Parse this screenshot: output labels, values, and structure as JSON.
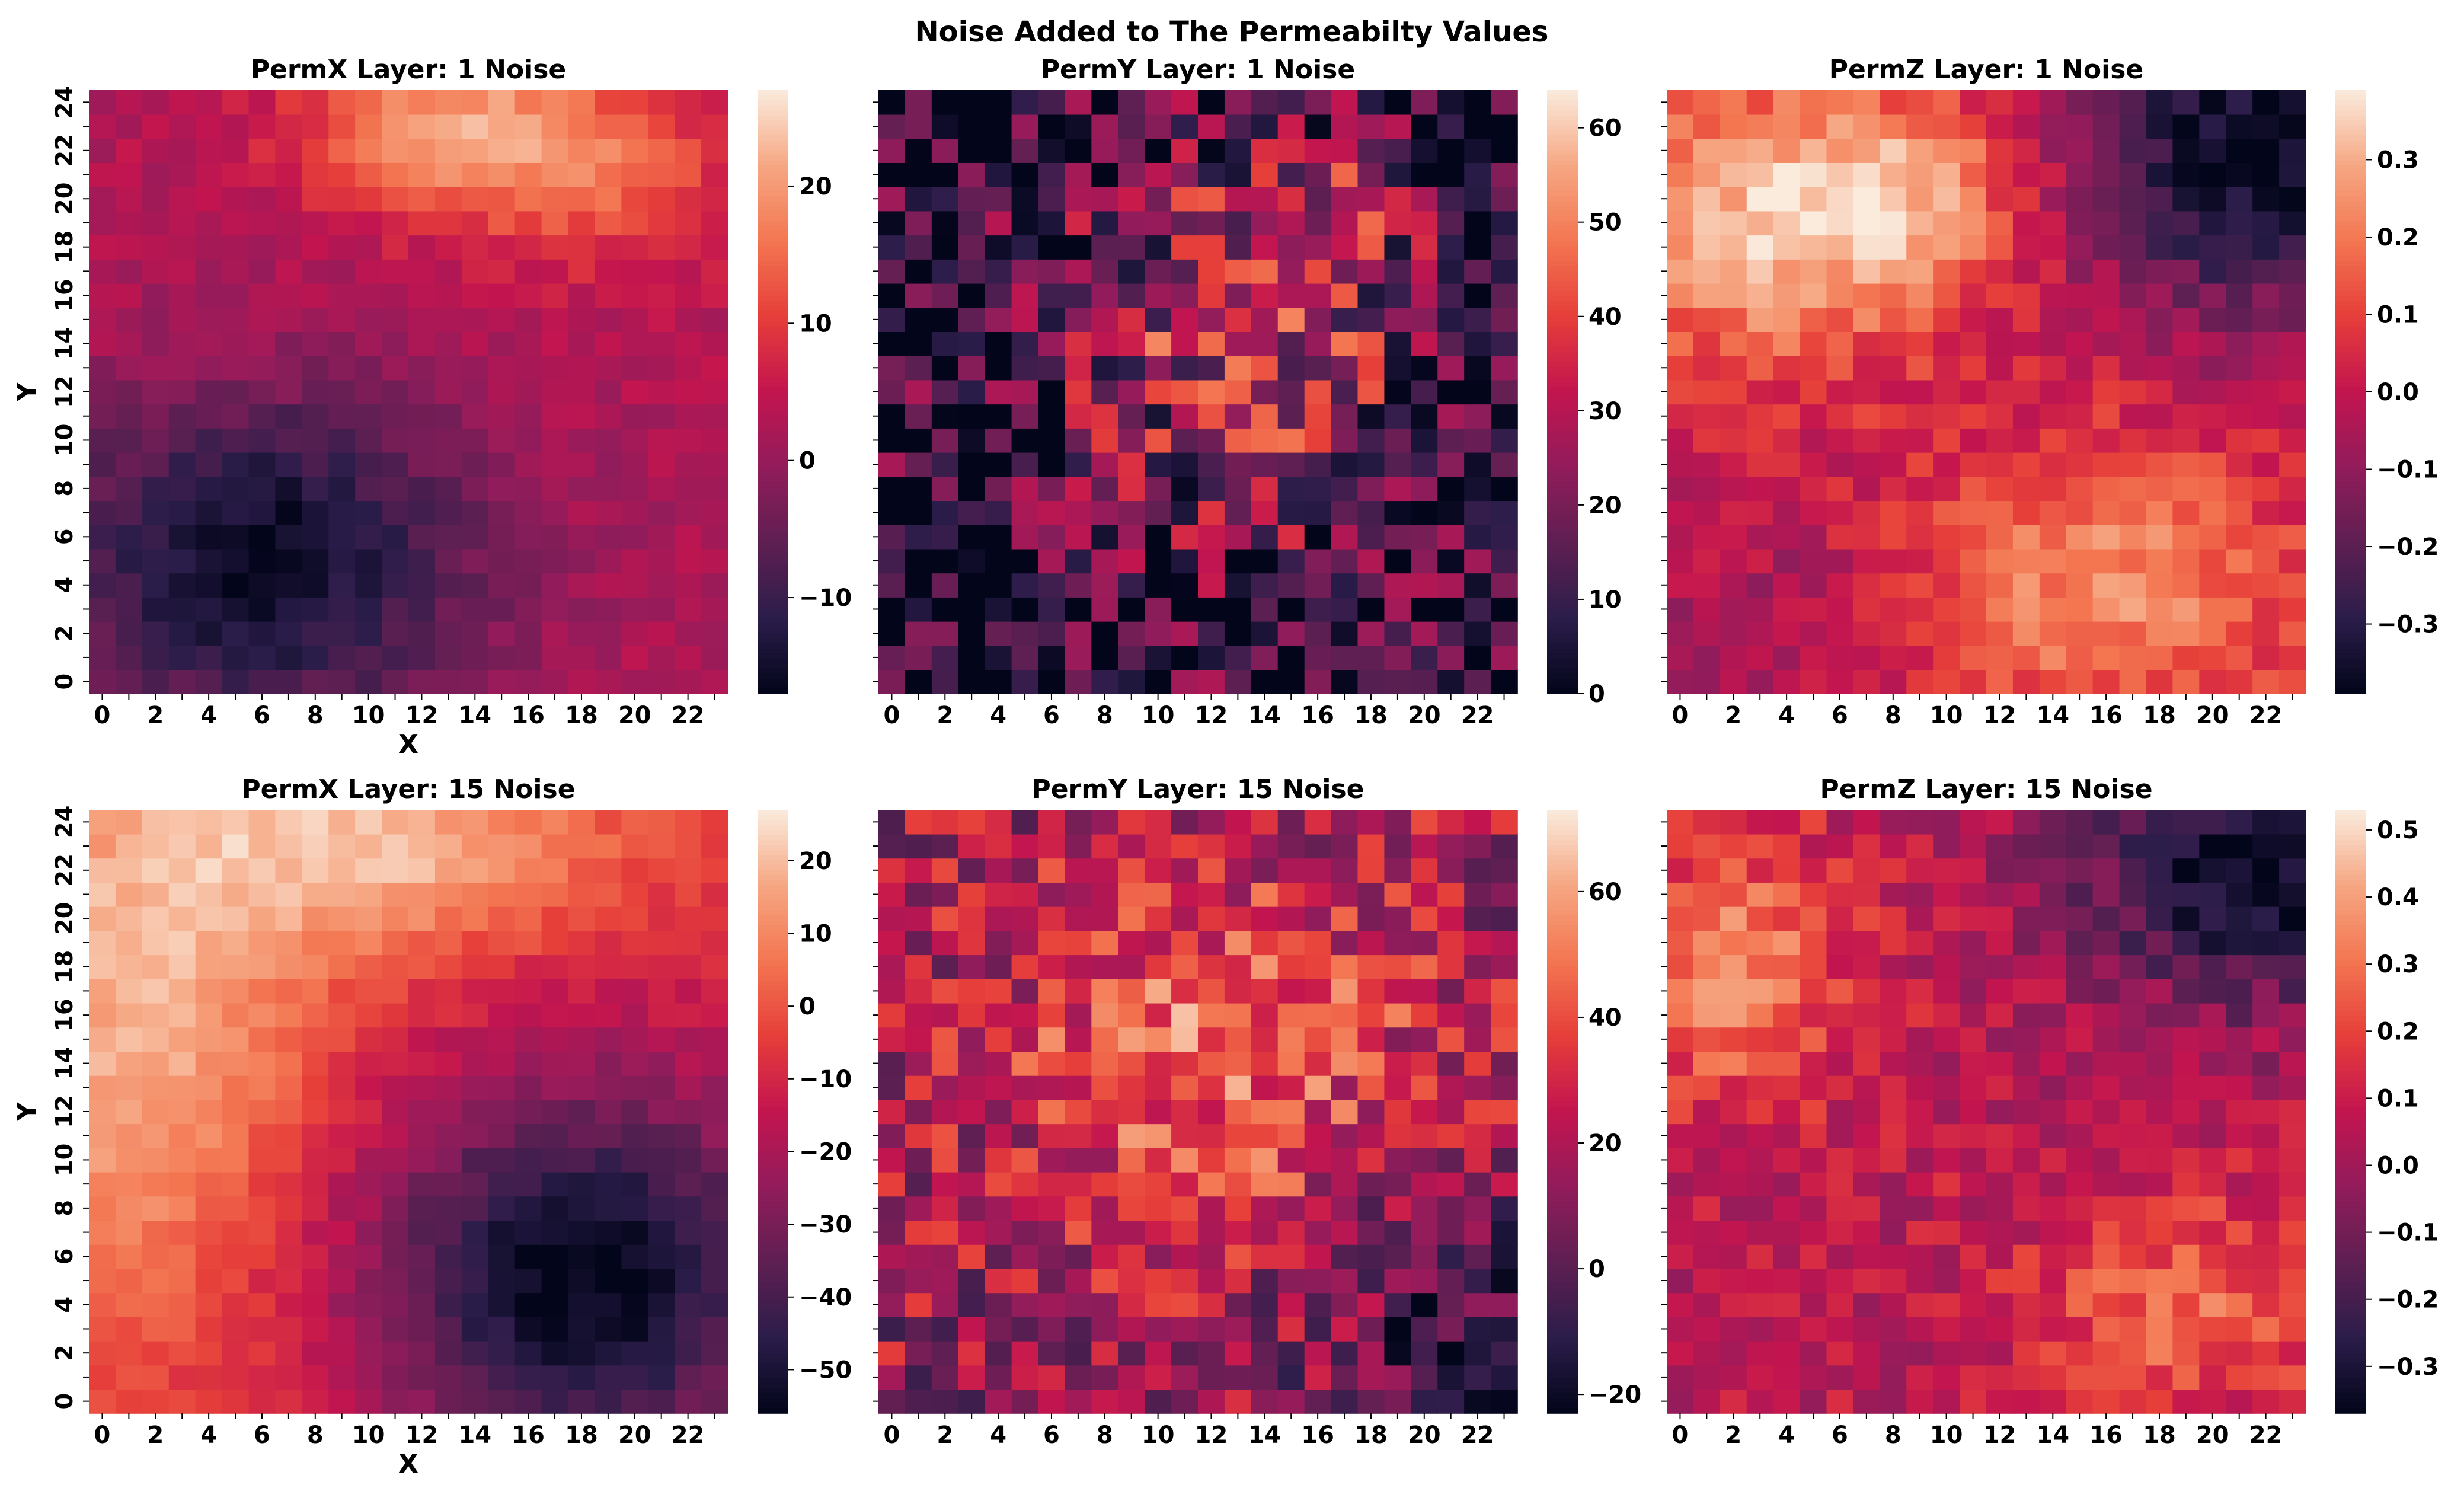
{
  "figure": {
    "suptitle": "Noise Added to The Permeabilty Values",
    "colormap": "rocket",
    "colormap_stops": [
      "#03051a",
      "#2b1d4a",
      "#5e1f52",
      "#921c5b",
      "#c3154f",
      "#e63e3a",
      "#f37651",
      "#f6a783",
      "#faebdd"
    ]
  },
  "chart_data": [
    {
      "type": "heatmap",
      "title": "PermX Layer: 1 Noise",
      "xlabel": "X",
      "ylabel": "Y",
      "x_ticks": [
        "0",
        "2",
        "4",
        "6",
        "8",
        "10",
        "12",
        "14",
        "16",
        "18",
        "20",
        "22"
      ],
      "y_ticks": [
        "0",
        "2",
        "4",
        "6",
        "8",
        "10",
        "12",
        "14",
        "16",
        "18",
        "20",
        "22",
        "24"
      ],
      "nx": 24,
      "ny": 25,
      "vmin": -17,
      "vmax": 27,
      "colorbar_ticks": [
        {
          "value": -10,
          "label": "−10"
        },
        {
          "value": 0,
          "label": "0"
        },
        {
          "value": 10,
          "label": "10"
        },
        {
          "value": 20,
          "label": "20"
        }
      ],
      "field": {
        "base": 3,
        "noise": 2.5,
        "peaks": [
          {
            "x": 6,
            "y": 5,
            "a": -19,
            "sx": 6,
            "sy": 5
          },
          {
            "x": 13,
            "y": 23,
            "a": 16,
            "sx": 4,
            "sy": 2.5
          },
          {
            "x": 19,
            "y": 21,
            "a": 9,
            "sx": 4,
            "sy": 3
          }
        ]
      }
    },
    {
      "type": "heatmap",
      "title": "PermY Layer: 1 Noise",
      "xlabel": "",
      "ylabel": "",
      "x_ticks": [
        "0",
        "2",
        "4",
        "6",
        "8",
        "10",
        "12",
        "14",
        "16",
        "18",
        "20",
        "22"
      ],
      "y_ticks": [],
      "nx": 24,
      "ny": 25,
      "vmin": 0,
      "vmax": 64,
      "colorbar_ticks": [
        {
          "value": 0,
          "label": "0"
        },
        {
          "value": 10,
          "label": "10"
        },
        {
          "value": 20,
          "label": "20"
        },
        {
          "value": 30,
          "label": "30"
        },
        {
          "value": 40,
          "label": "40"
        },
        {
          "value": 50,
          "label": "50"
        },
        {
          "value": 60,
          "label": "60"
        }
      ],
      "field": {
        "base": 5,
        "noise": 22,
        "peaks": [
          {
            "x": 13,
            "y": 14,
            "a": 28,
            "sx": 5,
            "sy": 6
          },
          {
            "x": 16,
            "y": 19,
            "a": 12,
            "sx": 3,
            "sy": 3
          }
        ]
      }
    },
    {
      "type": "heatmap",
      "title": "PermZ Layer: 1 Noise",
      "xlabel": "",
      "ylabel": "",
      "x_ticks": [
        "0",
        "2",
        "4",
        "6",
        "8",
        "10",
        "12",
        "14",
        "16",
        "18",
        "20",
        "22"
      ],
      "y_ticks": [],
      "nx": 24,
      "ny": 25,
      "vmin": -0.39,
      "vmax": 0.39,
      "colorbar_ticks": [
        {
          "value": -0.3,
          "label": "−0.3"
        },
        {
          "value": -0.2,
          "label": "−0.2"
        },
        {
          "value": -0.1,
          "label": "−0.1"
        },
        {
          "value": 0.0,
          "label": "0.0"
        },
        {
          "value": 0.1,
          "label": "0.1"
        },
        {
          "value": 0.2,
          "label": "0.2"
        },
        {
          "value": 0.3,
          "label": "0.3"
        }
      ],
      "field": {
        "base": 0.02,
        "noise": 0.07,
        "peaks": [
          {
            "x": 3,
            "y": 19,
            "a": 0.3,
            "sx": 4,
            "sy": 4
          },
          {
            "x": 9,
            "y": 20,
            "a": 0.22,
            "sx": 3,
            "sy": 3
          },
          {
            "x": 16,
            "y": 4,
            "a": 0.22,
            "sx": 5,
            "sy": 4
          },
          {
            "x": 22,
            "y": 22,
            "a": -0.42,
            "sx": 5,
            "sy": 5
          },
          {
            "x": 3,
            "y": 3,
            "a": -0.08,
            "sx": 4,
            "sy": 4
          }
        ]
      }
    },
    {
      "type": "heatmap",
      "title": "PermX  Layer: 15 Noise",
      "xlabel": "X",
      "ylabel": "Y",
      "x_ticks": [
        "0",
        "2",
        "4",
        "6",
        "8",
        "10",
        "12",
        "14",
        "16",
        "18",
        "20",
        "22"
      ],
      "y_ticks": [
        "0",
        "2",
        "4",
        "6",
        "8",
        "10",
        "12",
        "14",
        "16",
        "18",
        "20",
        "22",
        "24"
      ],
      "nx": 24,
      "ny": 25,
      "vmin": -56,
      "vmax": 27,
      "colorbar_ticks": [
        {
          "value": -50,
          "label": "−50"
        },
        {
          "value": -40,
          "label": "−40"
        },
        {
          "value": -30,
          "label": "−30"
        },
        {
          "value": -20,
          "label": "−20"
        },
        {
          "value": -10,
          "label": "−10"
        },
        {
          "value": 0,
          "label": "0"
        },
        {
          "value": 10,
          "label": "10"
        },
        {
          "value": 20,
          "label": "20"
        }
      ],
      "field": {
        "base": -8,
        "noise": 4,
        "peaks": [
          {
            "x": 18,
            "y": 5,
            "a": -48,
            "sx": 6,
            "sy": 6
          },
          {
            "x": 1,
            "y": 16,
            "a": 26,
            "sx": 5,
            "sy": 9
          },
          {
            "x": 11,
            "y": 23,
            "a": 26,
            "sx": 6,
            "sy": 3
          }
        ]
      }
    },
    {
      "type": "heatmap",
      "title": "PermY Layer: 15 Noise",
      "xlabel": "",
      "ylabel": "",
      "x_ticks": [
        "0",
        "2",
        "4",
        "6",
        "8",
        "10",
        "12",
        "14",
        "16",
        "18",
        "20",
        "22"
      ],
      "y_ticks": [],
      "nx": 24,
      "ny": 25,
      "vmin": -23,
      "vmax": 73,
      "colorbar_ticks": [
        {
          "value": -20,
          "label": "−20"
        },
        {
          "value": 0,
          "label": "0"
        },
        {
          "value": 20,
          "label": "20"
        },
        {
          "value": 40,
          "label": "40"
        },
        {
          "value": 60,
          "label": "60"
        }
      ],
      "field": {
        "base": 14,
        "noise": 22,
        "peaks": [
          {
            "x": 12,
            "y": 15,
            "a": 32,
            "sx": 6,
            "sy": 6
          },
          {
            "x": 22,
            "y": 2,
            "a": -26,
            "sx": 4,
            "sy": 4
          }
        ]
      }
    },
    {
      "type": "heatmap",
      "title": "PermZ Layer: 15 Noise",
      "xlabel": "",
      "ylabel": "",
      "x_ticks": [
        "0",
        "2",
        "4",
        "6",
        "8",
        "10",
        "12",
        "14",
        "16",
        "18",
        "20",
        "22"
      ],
      "y_ticks": [],
      "nx": 24,
      "ny": 25,
      "vmin": -0.37,
      "vmax": 0.53,
      "colorbar_ticks": [
        {
          "value": -0.3,
          "label": "−0.3"
        },
        {
          "value": -0.2,
          "label": "−0.2"
        },
        {
          "value": -0.1,
          "label": "−0.1"
        },
        {
          "value": 0.0,
          "label": "0.0"
        },
        {
          "value": 0.1,
          "label": "0.1"
        },
        {
          "value": 0.2,
          "label": "0.2"
        },
        {
          "value": 0.3,
          "label": "0.3"
        },
        {
          "value": 0.4,
          "label": "0.4"
        },
        {
          "value": 0.5,
          "label": "0.5"
        }
      ],
      "field": {
        "base": 0.06,
        "noise": 0.1,
        "peaks": [
          {
            "x": 2,
            "y": 18,
            "a": 0.28,
            "sx": 3,
            "sy": 4
          },
          {
            "x": 19,
            "y": 4,
            "a": 0.22,
            "sx": 4,
            "sy": 3
          },
          {
            "x": 22,
            "y": 22,
            "a": -0.42,
            "sx": 5,
            "sy": 4
          }
        ]
      }
    }
  ]
}
